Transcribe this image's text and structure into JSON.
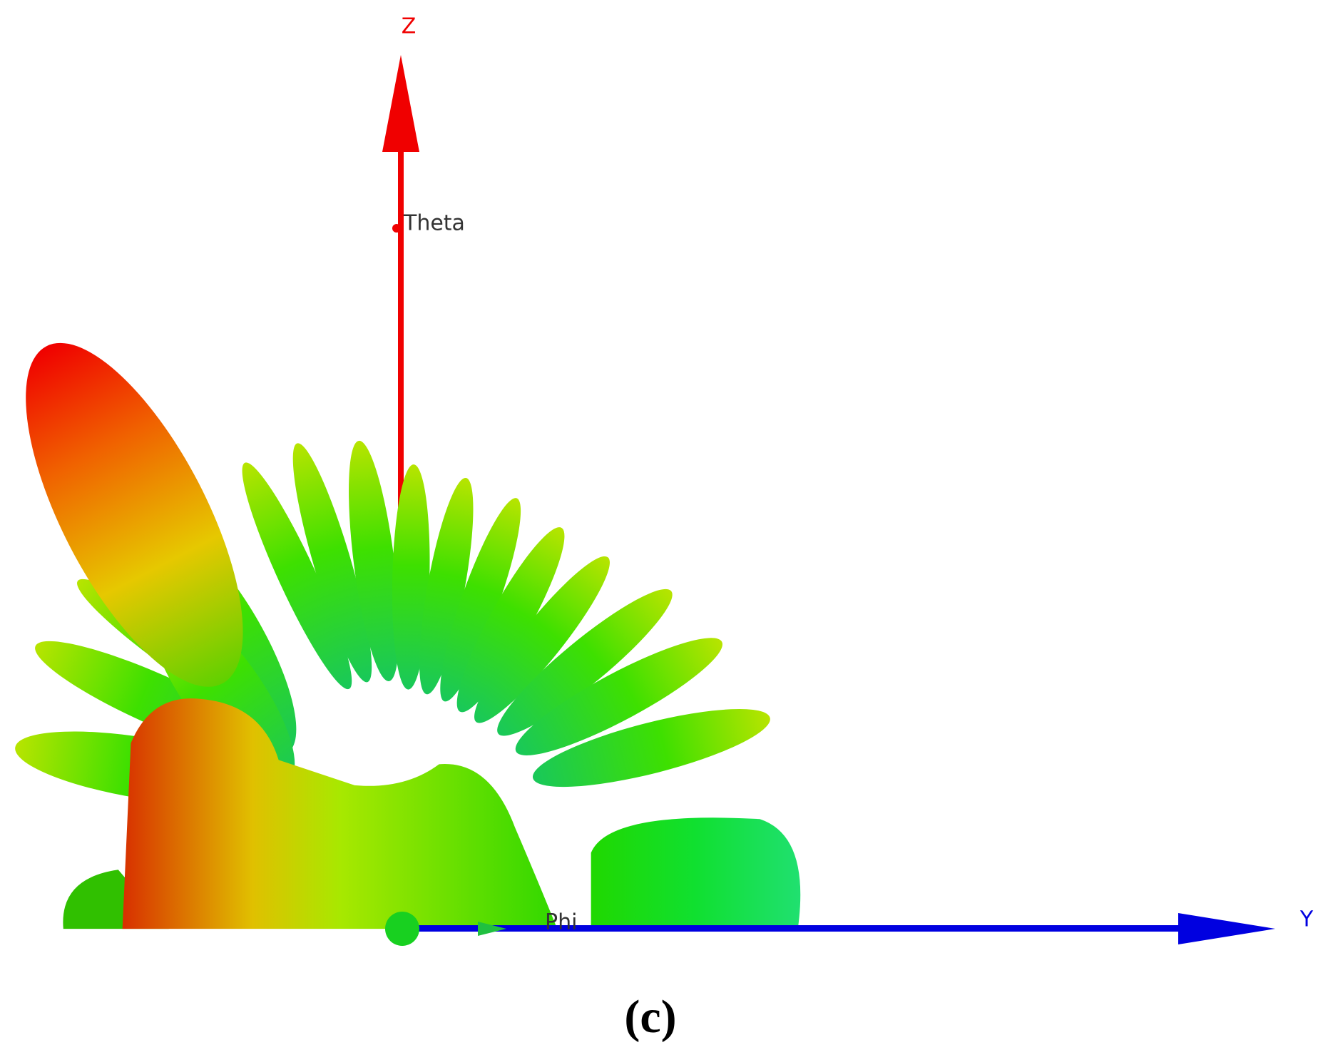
{
  "axes": {
    "z": "Z",
    "theta": "Theta",
    "phi": "Phi",
    "y": "Y"
  },
  "caption": "(c)"
}
